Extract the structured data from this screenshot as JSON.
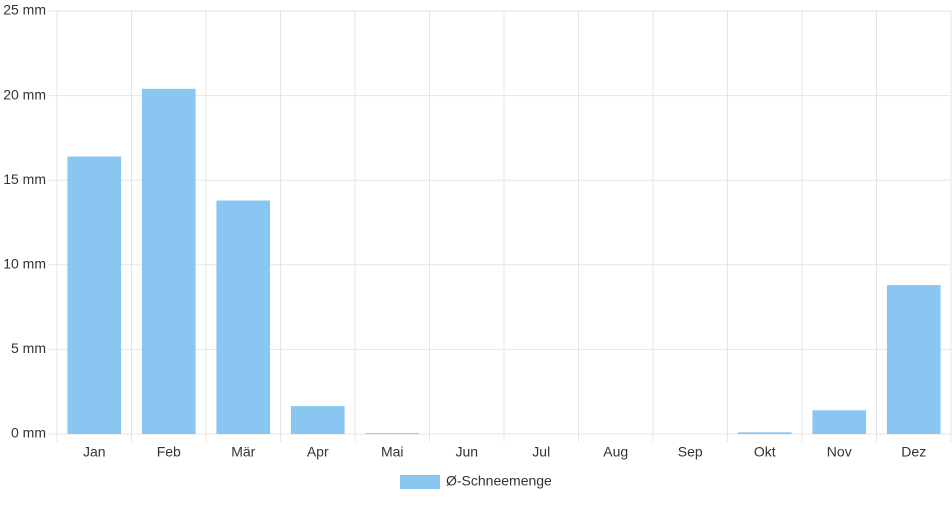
{
  "chart_data": {
    "type": "bar",
    "categories": [
      "Jan",
      "Feb",
      "Mär",
      "Apr",
      "Mai",
      "Jun",
      "Jul",
      "Aug",
      "Sep",
      "Okt",
      "Nov",
      "Dez"
    ],
    "series": [
      {
        "name": "Ø-Schneemenge",
        "color": "#89c6f2",
        "values": [
          16.4,
          20.4,
          13.8,
          1.65,
          0.05,
          0,
          0,
          0,
          0,
          0.1,
          1.4,
          8.8
        ]
      }
    ],
    "ylim": [
      0,
      25
    ],
    "yticks": [
      {
        "value": 0,
        "label": "0 mm"
      },
      {
        "value": 5,
        "label": "5 mm"
      },
      {
        "value": 10,
        "label": "10 mm"
      },
      {
        "value": 15,
        "label": "15 mm"
      },
      {
        "value": 20,
        "label": "20 mm"
      },
      {
        "value": 25,
        "label": "25 mm"
      }
    ],
    "grid": true,
    "legend": "bottom"
  }
}
